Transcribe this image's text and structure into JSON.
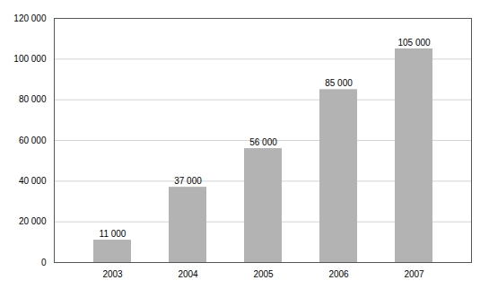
{
  "chart_data": {
    "type": "bar",
    "categories": [
      "2003",
      "2004",
      "2005",
      "2006",
      "2007"
    ],
    "values": [
      11000,
      37000,
      56000,
      85000,
      105000
    ],
    "value_labels": [
      "11 000",
      "37 000",
      "56 000",
      "85 000",
      "105 000"
    ],
    "data_labels": true,
    "color": "#b3b3b3",
    "ylim": [
      0,
      120000
    ],
    "yticks": [
      0,
      {
        "value": 20000,
        "label": "20 000"
      },
      {
        "value": 40000,
        "label": "40 000"
      },
      {
        "value": 60000,
        "label": "60 000"
      },
      {
        "value": 80000,
        "label": "80 000"
      },
      {
        "value": 100000,
        "label": "100 000"
      },
      {
        "value": 120000,
        "label": "120 000"
      }
    ],
    "grid": true
  }
}
